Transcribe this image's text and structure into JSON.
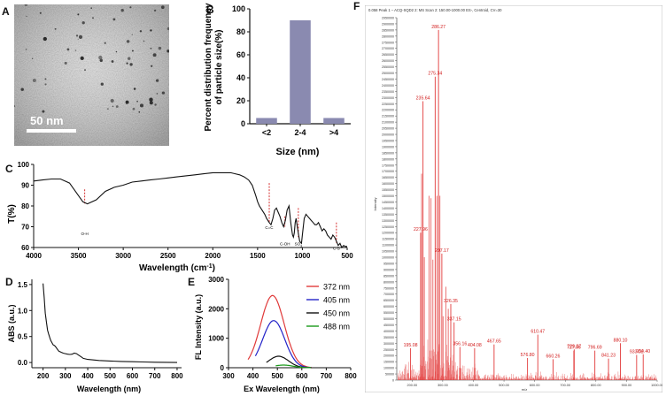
{
  "panels": {
    "A": {
      "letter": "A",
      "scale_bar_label": "50 nm"
    },
    "B": {
      "letter": "B",
      "chart_data": {
        "type": "bar",
        "categories": [
          "<2",
          "2-4",
          ">4"
        ],
        "values": [
          5,
          90,
          5
        ],
        "xlabel": "Size (nm)",
        "ylabel_line1": "Percent distribution frequency",
        "ylabel_line2": "of particle size(%)",
        "ylim": [
          0,
          100
        ],
        "yticks": [
          "0",
          "20",
          "40",
          "60",
          "80",
          "100"
        ],
        "bar_color": "#8a8ab0"
      }
    },
    "C": {
      "letter": "C",
      "chart_data": {
        "type": "line",
        "xlabel": "Wavelength (cm",
        "xlabel_sup": "-1",
        "xlabel_end": ")",
        "ylabel": "T(%)",
        "xlim": [
          4000,
          500
        ],
        "ylim": [
          60,
          100
        ],
        "xticks": [
          "4000",
          "3500",
          "3000",
          "2500",
          "2000",
          "1500",
          "1000",
          "500"
        ],
        "yticks": [
          "60",
          "70",
          "80",
          "90",
          "100"
        ],
        "x": [
          4000,
          3900,
          3800,
          3700,
          3600,
          3500,
          3450,
          3400,
          3300,
          3200,
          3100,
          3000,
          2900,
          2800,
          2700,
          2600,
          2500,
          2400,
          2300,
          2200,
          2100,
          2000,
          1900,
          1800,
          1750,
          1700,
          1650,
          1600,
          1560,
          1520,
          1500,
          1480,
          1450,
          1420,
          1400,
          1370,
          1350,
          1330,
          1310,
          1290,
          1270,
          1250,
          1230,
          1210,
          1190,
          1170,
          1150,
          1130,
          1110,
          1100,
          1090,
          1080,
          1070,
          1050,
          1030,
          1010,
          1000,
          980,
          960,
          940,
          920,
          900,
          880,
          860,
          840,
          820,
          800,
          780,
          760,
          740,
          720,
          700,
          680,
          660,
          640,
          620,
          600,
          580,
          560,
          540,
          520,
          500
        ],
        "y": [
          92,
          92.5,
          93,
          93,
          91,
          85,
          82,
          81,
          83,
          87,
          89,
          90,
          91.5,
          92,
          92.5,
          93,
          93.5,
          94,
          94.5,
          95,
          95.5,
          96,
          96,
          96,
          95.5,
          95,
          94,
          92.5,
          90,
          85,
          82,
          80,
          78,
          76,
          74,
          72,
          71,
          74,
          78,
          79,
          77,
          75,
          72,
          70,
          73,
          78,
          80,
          72,
          66,
          65,
          67,
          72,
          74,
          68,
          63,
          62,
          66,
          74,
          76,
          75,
          74,
          73,
          72,
          71,
          71,
          72,
          70,
          68,
          69,
          68,
          66,
          65,
          64,
          66,
          65,
          63,
          61,
          62,
          60,
          61,
          60.5,
          60.5
        ],
        "annotations": [
          {
            "label": "O-H",
            "x": 3430,
            "y_top": 88,
            "y_bottom": 81,
            "label_y": 66
          },
          {
            "label": "C=C",
            "x": 1370,
            "y_top": 91,
            "y_bottom": 72,
            "label_y": 69
          },
          {
            "label": "C-OH",
            "x": 1195,
            "y_top": 75,
            "y_bottom": 70,
            "label_y": 61
          },
          {
            "label": "SO",
            "x": 1045,
            "y_top": 79,
            "y_bottom": 65,
            "label_y": 61
          },
          {
            "label": "C-S",
            "x": 620,
            "y_top": 72,
            "y_bottom": 62,
            "label_y": 59
          }
        ],
        "annotation_color": "#d11a1a"
      }
    },
    "D": {
      "letter": "D",
      "chart_data": {
        "type": "line",
        "xlabel": "Wavelength (nm)",
        "ylabel": "ABS (a.u.)",
        "xlim": [
          150,
          820
        ],
        "ylim": [
          -0.1,
          1.6
        ],
        "xticks": [
          "200",
          "300",
          "400",
          "500",
          "600",
          "700",
          "800"
        ],
        "yticks": [
          "0.0",
          "0.5",
          "1.0",
          "1.5"
        ],
        "x": [
          200,
          205,
          210,
          215,
          220,
          225,
          230,
          235,
          240,
          245,
          250,
          255,
          260,
          270,
          280,
          290,
          300,
          310,
          320,
          330,
          340,
          350,
          360,
          370,
          380,
          400,
          450,
          500,
          550,
          600,
          650,
          700,
          750,
          800
        ],
        "y": [
          1.52,
          1.25,
          0.95,
          0.78,
          0.62,
          0.55,
          0.48,
          0.42,
          0.38,
          0.34,
          0.33,
          0.31,
          0.28,
          0.22,
          0.2,
          0.18,
          0.17,
          0.16,
          0.155,
          0.16,
          0.18,
          0.17,
          0.14,
          0.11,
          0.08,
          0.06,
          0.04,
          0.03,
          0.02,
          0.015,
          0.01,
          0.005,
          0.003,
          0.0
        ]
      }
    },
    "E": {
      "letter": "E",
      "chart_data": {
        "type": "line",
        "xlabel": "Ex Wavelength (nm)",
        "ylabel": "FL Intensity (a.u.)",
        "xlim": [
          300,
          800
        ],
        "ylim": [
          0,
          3000
        ],
        "xticks": [
          "300",
          "400",
          "500",
          "600",
          "700",
          "800"
        ],
        "yticks": [
          "0",
          "1000",
          "2000",
          "3000"
        ],
        "series": [
          {
            "name": "372 nm",
            "color": "#e03a3a",
            "peak": 480,
            "amp": 2450,
            "sigma": 48,
            "start": 380
          },
          {
            "name": "405 nm",
            "color": "#2323c8",
            "peak": 485,
            "amp": 1600,
            "sigma": 45,
            "start": 410
          },
          {
            "name": "450 nm",
            "color": "#111111",
            "peak": 505,
            "amp": 390,
            "sigma": 40,
            "start": 455
          },
          {
            "name": "488 nm",
            "color": "#1a9a1a",
            "peak": 525,
            "amp": 90,
            "sigma": 38,
            "start": 493
          }
        ]
      }
    },
    "F": {
      "letter": "F",
      "chart_data": {
        "type": "bar",
        "header": "0.058 Peak 1 – ACQ-SQD2 2: MS Scan 2: 150.00-1000.00 ES-, Centroid, CV=30",
        "ylabel": "Intensity",
        "xlabel": "m/z",
        "xlim": [
          150,
          1000
        ],
        "ylim": [
          0,
          2950000
        ],
        "xticks": [
          "200.00",
          "300.00",
          "400.00",
          "500.00",
          "600.00",
          "700.00",
          "800.00",
          "900.00",
          "1000.00"
        ],
        "yticks": [
          "0",
          "50000",
          "100000",
          "150000",
          "200000",
          "250000",
          "300000",
          "350000",
          "400000",
          "450000",
          "500000",
          "550000",
          "600000",
          "650000",
          "700000",
          "750000",
          "800000",
          "850000",
          "900000",
          "950000",
          "1000000",
          "1050000",
          "1100000",
          "1150000",
          "1200000",
          "1250000",
          "1300000",
          "1350000",
          "1400000",
          "1450000",
          "1500000",
          "1550000",
          "1600000",
          "1650000",
          "1700000",
          "1750000",
          "1800000",
          "1850000",
          "1900000",
          "1950000",
          "2000000",
          "2050000",
          "2100000",
          "2150000",
          "2200000",
          "2250000",
          "2300000",
          "2350000",
          "2400000",
          "2450000",
          "2500000",
          "2550000",
          "2600000",
          "2650000",
          "2700000",
          "2750000",
          "2800000",
          "2850000",
          "2900000",
          "2950000"
        ],
        "peaks": [
          {
            "mz": 286.27,
            "intensity": 2850000,
            "label": "286.27"
          },
          {
            "mz": 275.34,
            "intensity": 2470000,
            "label": "275.34"
          },
          {
            "mz": 235.64,
            "intensity": 2270000,
            "label": "235.64"
          },
          {
            "mz": 227.96,
            "intensity": 1200000,
            "label": "227.96"
          },
          {
            "mz": 297.17,
            "intensity": 1030000,
            "label": "297.17"
          },
          {
            "mz": 326.35,
            "intensity": 620000,
            "label": "326.35"
          },
          {
            "mz": 337.15,
            "intensity": 470000,
            "label": "337.15"
          },
          {
            "mz": 610.47,
            "intensity": 370000,
            "label": "610.47"
          },
          {
            "mz": 356.16,
            "intensity": 270000,
            "label": "356.16"
          },
          {
            "mz": 404.08,
            "intensity": 260000,
            "label": "404.08"
          },
          {
            "mz": 467.65,
            "intensity": 290000,
            "label": "467.65"
          },
          {
            "mz": 195.08,
            "intensity": 260000,
            "label": "195.08"
          },
          {
            "mz": 576.8,
            "intensity": 180000,
            "label": "576.80"
          },
          {
            "mz": 660.26,
            "intensity": 170000,
            "label": "660.26"
          },
          {
            "mz": 727.96,
            "intensity": 240000,
            "label": "727.96"
          },
          {
            "mz": 729.27,
            "intensity": 250000,
            "label": "729.27"
          },
          {
            "mz": 796.69,
            "intensity": 240000,
            "label": "796.69"
          },
          {
            "mz": 841.23,
            "intensity": 175000,
            "label": "841.23"
          },
          {
            "mz": 880.1,
            "intensity": 300000,
            "label": "880.10"
          },
          {
            "mz": 933.02,
            "intensity": 205000,
            "label": "933.02"
          },
          {
            "mz": 954.4,
            "intensity": 210000,
            "label": "954.40"
          }
        ],
        "bar_color": "#e23a3a"
      }
    }
  }
}
